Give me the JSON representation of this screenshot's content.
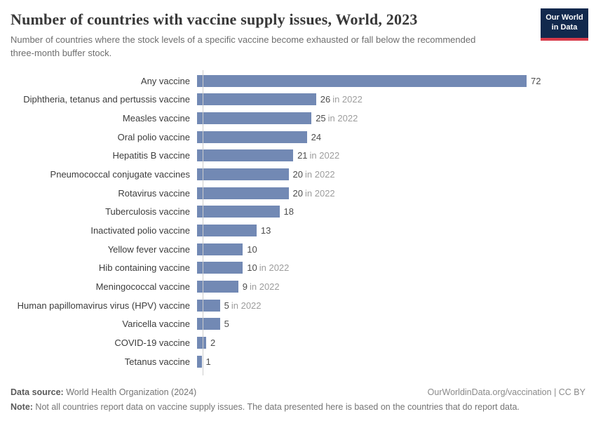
{
  "header": {
    "title": "Number of countries with vaccine supply issues, World, 2023",
    "subtitle": "Number of countries where the stock levels of a specific vaccine become exhausted or fall below the recommended three-month buffer stock.",
    "logo": {
      "line1": "Our World",
      "line2": "in Data"
    }
  },
  "chart_data": {
    "type": "bar",
    "orientation": "horizontal",
    "title": "Number of countries with vaccine supply issues, World, 2023",
    "categories": [
      "Any vaccine",
      "Diphtheria, tetanus and pertussis vaccine",
      "Measles vaccine",
      "Oral polio vaccine",
      "Hepatitis B vaccine",
      "Pneumococcal conjugate vaccines",
      "Rotavirus vaccine",
      "Tuberculosis vaccine",
      "Inactivated polio vaccine",
      "Yellow fever vaccine",
      "Hib containing vaccine",
      "Meningococcal vaccine",
      "Human papillomavirus virus (HPV) vaccine",
      "Varicella vaccine",
      "COVID-19 vaccine",
      "Tetanus vaccine"
    ],
    "values": [
      72,
      26,
      25,
      24,
      21,
      20,
      20,
      18,
      13,
      10,
      10,
      9,
      5,
      5,
      2,
      1
    ],
    "value_annotations": [
      "",
      "in 2022",
      "in 2022",
      "",
      "in 2022",
      "in 2022",
      "in 2022",
      "",
      "",
      "",
      "in 2022",
      "in 2022",
      "in 2022",
      "",
      "",
      ""
    ],
    "xlim": [
      0,
      72
    ],
    "grid": false,
    "value_labels": true,
    "legend": "none",
    "bar_color": "#7289b4"
  },
  "footer": {
    "source_label": "Data source:",
    "source_text": " World Health Organization (2024)",
    "link_text": "OurWorldinData.org/vaccination | CC BY",
    "note_label": "Note:",
    "note_text": " Not all countries report data on vaccine supply issues. The data presented here is based on the countries that do report data."
  },
  "colors": {
    "bar": "#7289b4",
    "logo-bg": "#12294d",
    "logo-stripe": "#d73a49"
  }
}
